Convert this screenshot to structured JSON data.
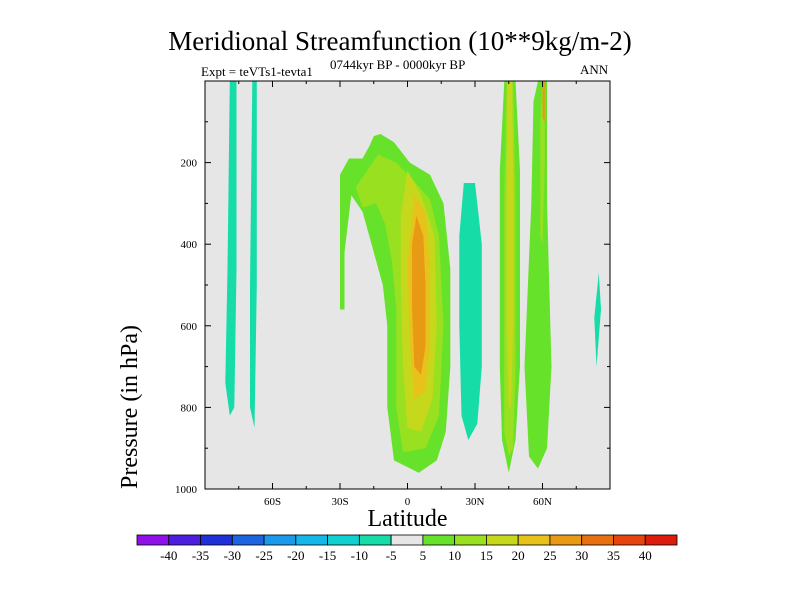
{
  "chart_data": {
    "type": "filled-contour",
    "title": "Meridional Streamfunction (10**9kg/m-2)",
    "subtitle_left": "Expt = teVTs1-tevta1",
    "subtitle_center": "0744kyr BP - 0000kyr BP",
    "subtitle_right": "ANN",
    "xlabel": "Latitude",
    "ylabel": "Pressure (in hPa)",
    "xlim": [
      -90,
      90
    ],
    "ylim": [
      1000,
      0
    ],
    "x_ticks": [
      -60,
      -30,
      0,
      30,
      60
    ],
    "x_tick_labels": [
      "60S",
      "30S",
      "0",
      "30N",
      "60N"
    ],
    "y_ticks": [
      200,
      400,
      600,
      800,
      1000
    ],
    "y_tick_labels": [
      "200",
      "400",
      "600",
      "800",
      "1000"
    ],
    "background_color": "#e6e6e6",
    "colorbar": {
      "levels": [
        -40,
        -35,
        -30,
        -25,
        -20,
        -15,
        -10,
        -5,
        5,
        10,
        15,
        20,
        25,
        30,
        35,
        40
      ],
      "labels": [
        "-40",
        "-35",
        "-30",
        "-25",
        "-20",
        "-15",
        "-10",
        "-5",
        "5",
        "10",
        "15",
        "20",
        "25",
        "30",
        "35",
        "40"
      ],
      "colors": [
        "#8f10e8",
        "#4b1ee0",
        "#2030d8",
        "#1c64e0",
        "#1a9ae8",
        "#14b8e8",
        "#10d0d0",
        "#16dca8",
        "#e6e6e6",
        "#66e22a",
        "#98e020",
        "#c6d81c",
        "#e6c21a",
        "#e89a14",
        "#e87010",
        "#e6440e",
        "#dc1c0c"
      ]
    },
    "contours": [
      {
        "value": -7.5,
        "polygon": [
          [
            -79,
            0
          ],
          [
            -76,
            0
          ],
          [
            -76,
            460
          ],
          [
            -77,
            800
          ],
          [
            -79,
            820
          ],
          [
            -81,
            740
          ],
          [
            -80,
            460
          ]
        ]
      },
      {
        "value": -7.5,
        "polygon": [
          [
            -69,
            0
          ],
          [
            -67,
            0
          ],
          [
            -67,
            500
          ],
          [
            -68,
            850
          ],
          [
            -70,
            800
          ],
          [
            -70,
            500
          ]
        ]
      },
      {
        "value": -7.5,
        "polygon": [
          [
            25,
            250
          ],
          [
            30,
            250
          ],
          [
            33,
            400
          ],
          [
            33,
            700
          ],
          [
            31,
            840
          ],
          [
            27,
            880
          ],
          [
            24,
            820
          ],
          [
            23,
            600
          ],
          [
            23,
            380
          ]
        ]
      },
      {
        "value": -7.5,
        "polygon": [
          [
            84,
            700
          ],
          [
            83,
            580
          ],
          [
            85,
            470
          ],
          [
            86,
            560
          ]
        ]
      },
      {
        "value": 7.5,
        "polygon": [
          [
            -12,
            130
          ],
          [
            -6,
            150
          ],
          [
            1,
            200
          ],
          [
            10,
            230
          ],
          [
            16,
            300
          ],
          [
            19,
            460
          ],
          [
            19,
            700
          ],
          [
            17,
            860
          ],
          [
            13,
            930
          ],
          [
            5,
            960
          ],
          [
            -6,
            930
          ],
          [
            -9,
            800
          ],
          [
            -9,
            600
          ],
          [
            -11,
            500
          ],
          [
            -17,
            380
          ],
          [
            -20,
            320
          ],
          [
            -25,
            280
          ],
          [
            -28,
            420
          ],
          [
            -28,
            560
          ],
          [
            -30,
            560
          ],
          [
            -30,
            230
          ],
          [
            -26,
            190
          ],
          [
            -20,
            190
          ],
          [
            -17,
            160
          ],
          [
            -15,
            135
          ]
        ]
      },
      {
        "value": 7.5,
        "polygon": [
          [
            43,
            0
          ],
          [
            48,
            0
          ],
          [
            50,
            220
          ],
          [
            50,
            700
          ],
          [
            48,
            880
          ],
          [
            45,
            960
          ],
          [
            42,
            880
          ],
          [
            41,
            700
          ],
          [
            41,
            220
          ]
        ]
      },
      {
        "value": 7.5,
        "polygon": [
          [
            58,
            0
          ],
          [
            62,
            0
          ],
          [
            62,
            300
          ],
          [
            64,
            700
          ],
          [
            62,
            900
          ],
          [
            58,
            950
          ],
          [
            54,
            920
          ],
          [
            52,
            700
          ],
          [
            55,
            300
          ],
          [
            56,
            50
          ]
        ]
      },
      {
        "value": 12.5,
        "polygon": [
          [
            -13,
            180
          ],
          [
            -5,
            200
          ],
          [
            2,
            240
          ],
          [
            10,
            290
          ],
          [
            14,
            380
          ],
          [
            16,
            600
          ],
          [
            14,
            820
          ],
          [
            8,
            900
          ],
          [
            -2,
            910
          ],
          [
            -5,
            800
          ],
          [
            -5,
            560
          ],
          [
            -7,
            440
          ],
          [
            -10,
            350
          ],
          [
            -14,
            300
          ],
          [
            -20,
            310
          ],
          [
            -23,
            260
          ],
          [
            -18,
            220
          ]
        ]
      },
      {
        "value": 12.5,
        "polygon": [
          [
            44,
            0
          ],
          [
            47,
            0
          ],
          [
            48,
            300
          ],
          [
            48,
            700
          ],
          [
            47,
            900
          ],
          [
            45,
            920
          ],
          [
            43,
            860
          ],
          [
            43,
            300
          ]
        ]
      },
      {
        "value": 12.5,
        "polygon": [
          [
            60,
            0
          ],
          [
            61,
            0
          ],
          [
            61,
            200
          ],
          [
            60,
            400
          ],
          [
            59,
            380
          ],
          [
            59,
            100
          ]
        ]
      },
      {
        "value": 17.5,
        "polygon": [
          [
            0,
            220
          ],
          [
            6,
            280
          ],
          [
            12,
            380
          ],
          [
            13,
            600
          ],
          [
            11,
            780
          ],
          [
            6,
            860
          ],
          [
            0,
            850
          ],
          [
            -2,
            700
          ],
          [
            -3,
            500
          ],
          [
            -3,
            330
          ]
        ]
      },
      {
        "value": 17.5,
        "polygon": [
          [
            44.5,
            0
          ],
          [
            46.5,
            0
          ],
          [
            47,
            300
          ],
          [
            47,
            600
          ],
          [
            46,
            800
          ],
          [
            45,
            800
          ],
          [
            44,
            600
          ],
          [
            44,
            300
          ]
        ]
      },
      {
        "value": 22.5,
        "polygon": [
          [
            3,
            280
          ],
          [
            8,
            320
          ],
          [
            10,
            450
          ],
          [
            10,
            650
          ],
          [
            8,
            760
          ],
          [
            3,
            780
          ],
          [
            1,
            650
          ],
          [
            0,
            450
          ]
        ]
      },
      {
        "value": 27.5,
        "polygon": [
          [
            4,
            330
          ],
          [
            7,
            380
          ],
          [
            8,
            500
          ],
          [
            8,
            650
          ],
          [
            6,
            720
          ],
          [
            3,
            700
          ],
          [
            2,
            550
          ],
          [
            2,
            400
          ]
        ]
      },
      {
        "value": 27.5,
        "polygon": [
          [
            60,
            0
          ],
          [
            61,
            0
          ],
          [
            61,
            100
          ],
          [
            60,
            90
          ]
        ]
      }
    ]
  }
}
